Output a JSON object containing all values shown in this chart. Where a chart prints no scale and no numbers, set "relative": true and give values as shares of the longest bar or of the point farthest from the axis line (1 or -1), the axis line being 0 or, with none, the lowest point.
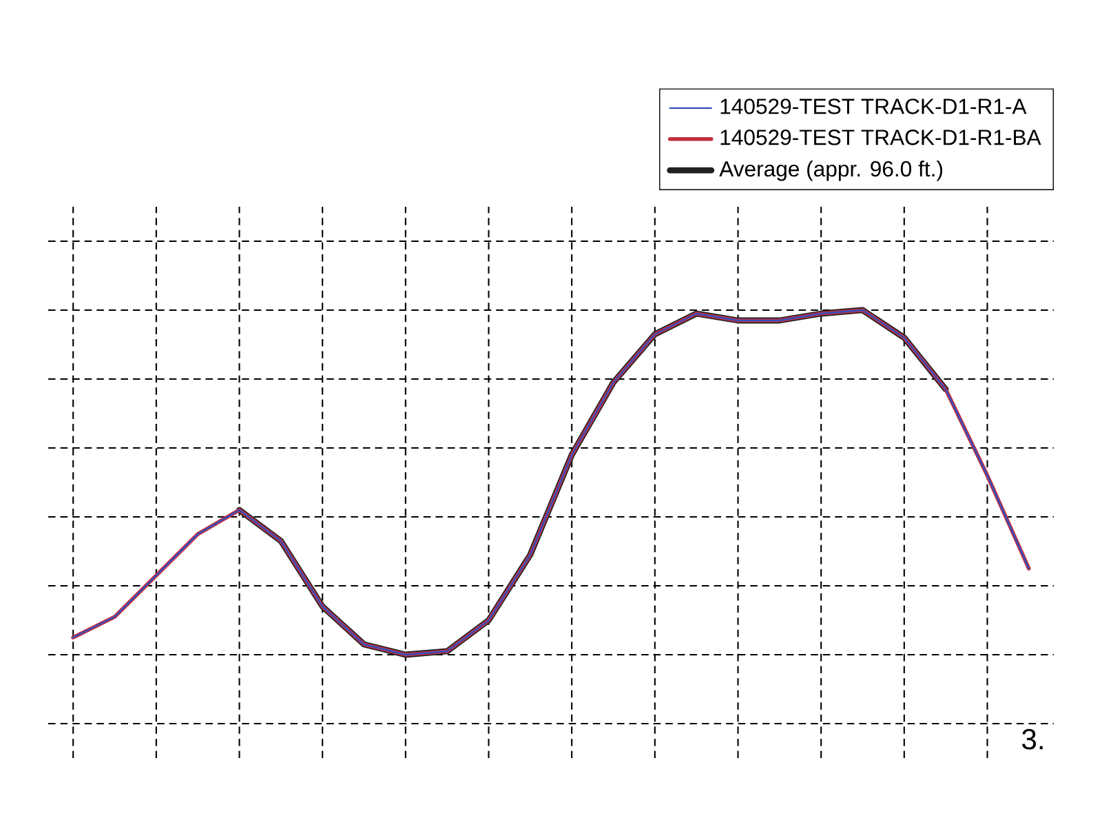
{
  "chart_data": {
    "type": "line",
    "relative": true,
    "categories": [
      null,
      null,
      null,
      null,
      null,
      null,
      null,
      null,
      null,
      null,
      null,
      null,
      null,
      null,
      null,
      null,
      null,
      null,
      null,
      null,
      null,
      null,
      null,
      null
    ],
    "series": [
      {
        "name": "140529-TEST TRACK-D1-R1-A",
        "color": "#3050c0",
        "values": [
          0.05,
          0.11,
          0.23,
          0.35,
          0.42,
          0.33,
          0.14,
          0.03,
          0.0,
          0.01,
          0.1,
          0.29,
          0.58,
          0.79,
          0.93,
          0.99,
          0.97,
          0.97,
          0.99,
          1.0,
          0.92,
          0.77,
          0.52,
          0.25
        ]
      },
      {
        "name": "140529-TEST TRACK-D1-R1-BA",
        "color": "#c03040",
        "values": [
          0.05,
          0.11,
          0.23,
          0.35,
          0.42,
          0.33,
          0.14,
          0.03,
          0.0,
          0.01,
          0.1,
          0.29,
          0.58,
          0.79,
          0.93,
          0.99,
          0.97,
          0.97,
          0.99,
          1.0,
          0.92,
          0.77,
          0.52,
          0.25
        ]
      },
      {
        "name": "Average (appr. 96.0 ft.)",
        "color": "#202020",
        "values": [
          null,
          null,
          null,
          null,
          0.42,
          0.33,
          0.14,
          0.03,
          0.0,
          0.01,
          0.1,
          0.29,
          0.58,
          0.79,
          0.93,
          0.99,
          0.97,
          0.97,
          0.99,
          1.0,
          0.92,
          0.77,
          null,
          null
        ]
      }
    ],
    "legend": "top right",
    "grid": true,
    "line_style": "solid",
    "annotations": [
      "3."
    ]
  }
}
